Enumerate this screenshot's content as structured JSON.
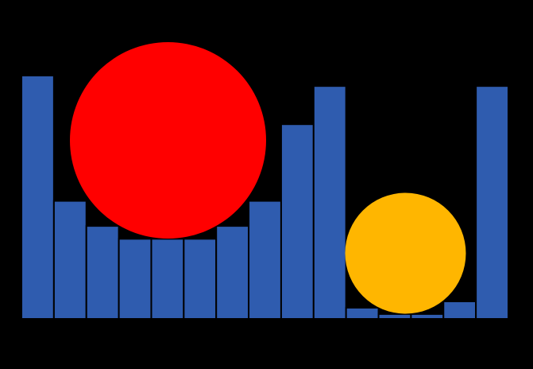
{
  "scene": {
    "background_color": "#000000",
    "bar_color": "#2f5caf",
    "bar_edge_color": "#000000"
  },
  "chart_data": {
    "type": "bar",
    "values": [
      1.0,
      0.485,
      0.382,
      0.329,
      0.329,
      0.329,
      0.382,
      0.485,
      0.8,
      0.957,
      0.046,
      0.02,
      0.02,
      0.072,
      0.957
    ],
    "ylim": [
      0,
      1
    ]
  },
  "balls": [
    {
      "name": "red-ball",
      "color": "#ff0000"
    },
    {
      "name": "yellow-ball",
      "color": "#ffb600"
    }
  ]
}
